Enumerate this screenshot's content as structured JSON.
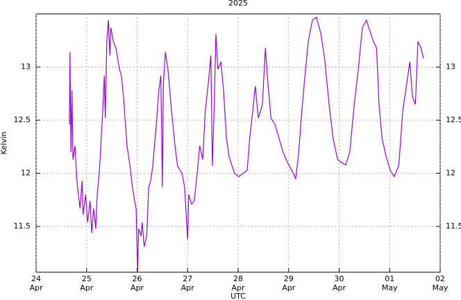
{
  "chart_data": {
    "type": "line",
    "title": "2025",
    "x_label": "UTC",
    "y_label": "Kelvin",
    "x": [
      0.66,
      0.67,
      0.69,
      0.71,
      0.73,
      0.77,
      0.8,
      0.82,
      0.87,
      0.91,
      0.93,
      0.98,
      1.02,
      1.07,
      1.1,
      1.14,
      1.18,
      1.21,
      1.25,
      1.29,
      1.32,
      1.35,
      1.37,
      1.4,
      1.43,
      1.46,
      1.48,
      1.53,
      1.58,
      1.65,
      1.69,
      1.73,
      1.76,
      1.8,
      1.86,
      1.9,
      1.94,
      1.98,
      2.01,
      2.03,
      2.08,
      2.1,
      2.14,
      2.19,
      2.23,
      2.27,
      2.31,
      2.38,
      2.43,
      2.47,
      2.5,
      2.52,
      2.56,
      2.61,
      2.67,
      2.75,
      2.8,
      2.89,
      2.94,
      3.0,
      3.02,
      3.08,
      3.13,
      3.19,
      3.24,
      3.3,
      3.35,
      3.41,
      3.46,
      3.49,
      3.52,
      3.56,
      3.6,
      3.66,
      3.71,
      3.77,
      3.82,
      3.88,
      3.93,
      4.01,
      4.1,
      4.18,
      4.23,
      4.29,
      4.34,
      4.4,
      4.48,
      4.54,
      4.59,
      4.65,
      4.73,
      4.81,
      4.89,
      4.98,
      5.06,
      5.14,
      5.2,
      5.25,
      5.31,
      5.39,
      5.47,
      5.55,
      5.64,
      5.72,
      5.8,
      5.88,
      5.97,
      6.05,
      6.13,
      6.21,
      6.3,
      6.38,
      6.46,
      6.54,
      6.63,
      6.68,
      6.74,
      6.79,
      6.85,
      6.93,
      7.01,
      7.09,
      7.18,
      7.26,
      7.34,
      7.4,
      7.45,
      7.51,
      7.56,
      7.62,
      7.67
    ],
    "series": [
      {
        "color": "#9400d3",
        "values": [
          12.46,
          13.14,
          12.2,
          12.78,
          12.13,
          12.26,
          12.0,
          11.87,
          11.67,
          11.93,
          11.61,
          11.8,
          11.54,
          11.74,
          11.44,
          11.67,
          11.48,
          11.8,
          12.0,
          12.33,
          12.59,
          12.92,
          12.52,
          13.24,
          13.44,
          13.11,
          13.37,
          13.24,
          13.18,
          12.98,
          12.92,
          12.72,
          12.52,
          12.26,
          12.07,
          11.9,
          11.77,
          11.67,
          11.08,
          11.48,
          11.41,
          11.54,
          11.31,
          11.41,
          11.87,
          11.93,
          12.07,
          12.46,
          12.78,
          12.92,
          11.87,
          12.85,
          13.14,
          12.98,
          12.65,
          12.26,
          12.07,
          12.0,
          11.87,
          11.38,
          11.8,
          11.71,
          11.74,
          12.0,
          12.26,
          12.13,
          12.59,
          12.85,
          13.11,
          12.07,
          12.52,
          13.31,
          12.98,
          13.05,
          12.78,
          12.33,
          12.16,
          12.07,
          12.0,
          11.97,
          12.0,
          12.03,
          12.33,
          12.59,
          12.82,
          12.52,
          12.65,
          13.18,
          12.85,
          12.52,
          12.46,
          12.33,
          12.2,
          12.1,
          12.03,
          11.95,
          12.2,
          12.52,
          12.85,
          13.24,
          13.44,
          13.47,
          13.31,
          13.05,
          12.65,
          12.33,
          12.13,
          12.1,
          12.08,
          12.2,
          12.65,
          12.98,
          13.37,
          13.44,
          13.31,
          13.24,
          13.18,
          12.65,
          12.33,
          12.16,
          12.03,
          11.97,
          12.07,
          12.59,
          12.85,
          13.05,
          12.72,
          12.65,
          13.24,
          13.18,
          13.08
        ]
      }
    ],
    "xlim": [
      0,
      8
    ],
    "ylim": [
      11.07,
      13.5
    ],
    "xticks": [
      {
        "value": 0,
        "label": "24\nApr"
      },
      {
        "value": 1,
        "label": "25\nApr"
      },
      {
        "value": 2,
        "label": "26\nApr"
      },
      {
        "value": 3,
        "label": "27\nApr"
      },
      {
        "value": 4,
        "label": "28\nApr"
      },
      {
        "value": 5,
        "label": "29\nApr"
      },
      {
        "value": 6,
        "label": "30\nApr"
      },
      {
        "value": 7,
        "label": "01\nMay"
      },
      {
        "value": 8,
        "label": "02\nMay"
      }
    ],
    "yticks": [
      {
        "value": 11.5,
        "label": "11.5"
      },
      {
        "value": 12,
        "label": "12"
      },
      {
        "value": 12.5,
        "label": "12.5"
      },
      {
        "value": 13,
        "label": "13"
      }
    ],
    "grid": true
  }
}
